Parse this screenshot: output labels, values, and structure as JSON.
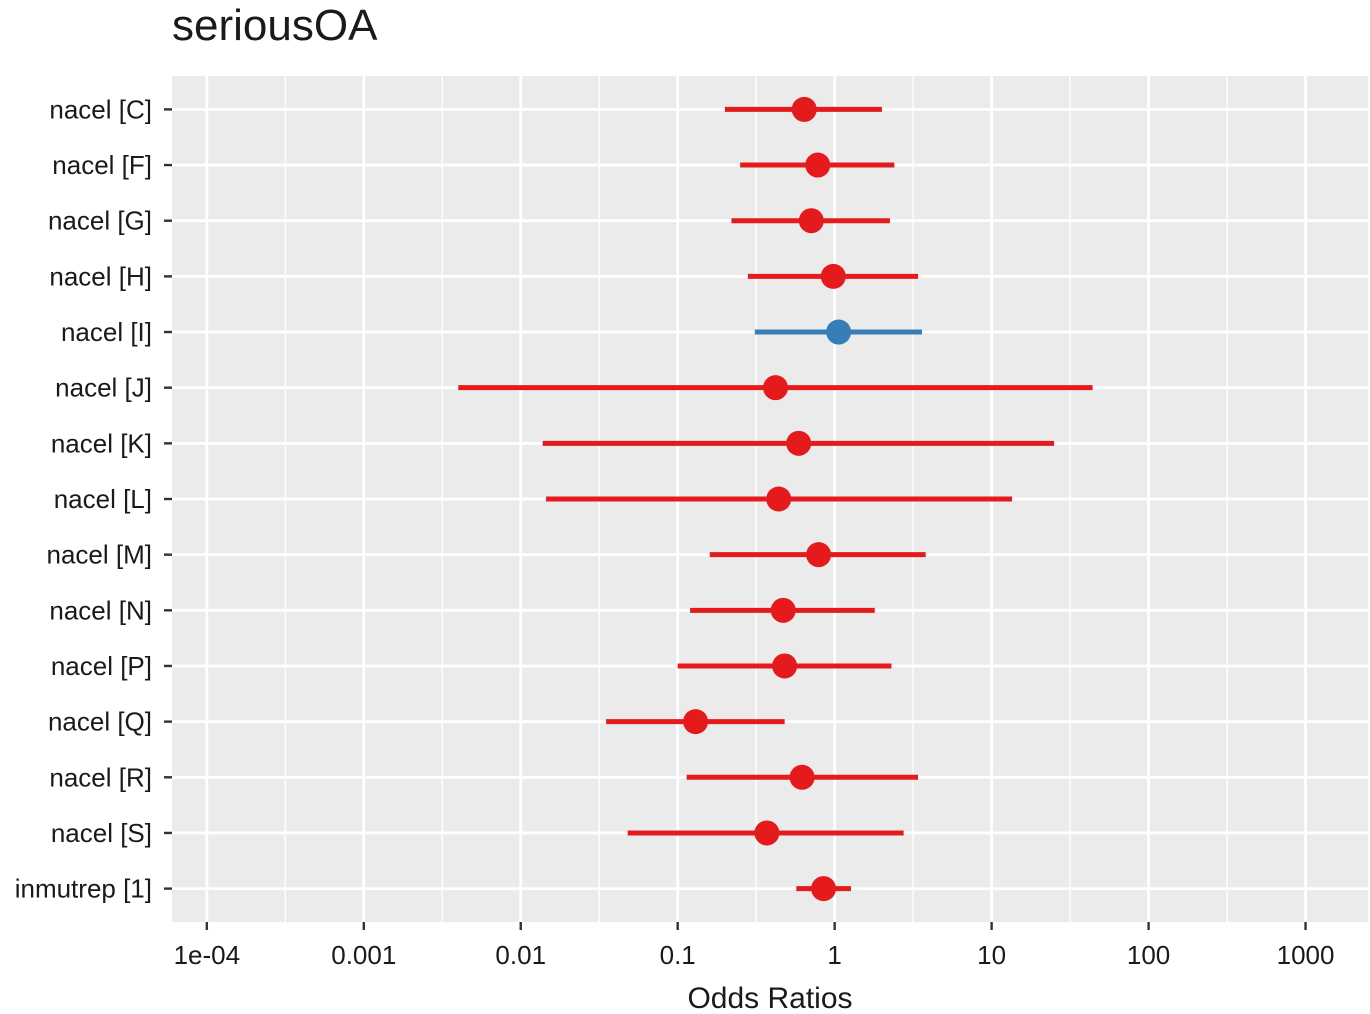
{
  "chart_data": {
    "type": "scatter",
    "subtype": "forest-plot",
    "title": "seriousOA",
    "xlabel": "Odds Ratios",
    "ylabel": "",
    "xscale": "log10",
    "xlim": [
      6e-05,
      2500
    ],
    "x_ticks": [
      0.0001,
      0.001,
      0.01,
      0.1,
      1,
      10,
      100,
      1000
    ],
    "x_tick_labels": [
      "1e-04",
      "0.001",
      "0.01",
      "0.1",
      "1",
      "10",
      "100",
      "1000"
    ],
    "grid": true,
    "legend": "none",
    "colors": {
      "negative": "#e41a1c",
      "positive": "#377eb8",
      "panel": "#ebebeb",
      "grid": "#ffffff"
    },
    "terms": [
      {
        "label": "nacel [C]",
        "estimate": 0.64,
        "ci_low": 0.2,
        "ci_high": 2.0,
        "direction": "negative"
      },
      {
        "label": "nacel [F]",
        "estimate": 0.78,
        "ci_low": 0.25,
        "ci_high": 2.4,
        "direction": "negative"
      },
      {
        "label": "nacel [G]",
        "estimate": 0.71,
        "ci_low": 0.22,
        "ci_high": 2.25,
        "direction": "negative"
      },
      {
        "label": "nacel [H]",
        "estimate": 0.98,
        "ci_low": 0.28,
        "ci_high": 3.4,
        "direction": "negative"
      },
      {
        "label": "nacel [I]",
        "estimate": 1.06,
        "ci_low": 0.31,
        "ci_high": 3.6,
        "direction": "positive"
      },
      {
        "label": "nacel [J]",
        "estimate": 0.42,
        "ci_low": 0.004,
        "ci_high": 44,
        "direction": "negative"
      },
      {
        "label": "nacel [K]",
        "estimate": 0.59,
        "ci_low": 0.0138,
        "ci_high": 25,
        "direction": "negative"
      },
      {
        "label": "nacel [L]",
        "estimate": 0.44,
        "ci_low": 0.0145,
        "ci_high": 13.5,
        "direction": "negative"
      },
      {
        "label": "nacel [M]",
        "estimate": 0.79,
        "ci_low": 0.16,
        "ci_high": 3.8,
        "direction": "negative"
      },
      {
        "label": "nacel [N]",
        "estimate": 0.47,
        "ci_low": 0.12,
        "ci_high": 1.8,
        "direction": "negative"
      },
      {
        "label": "nacel [P]",
        "estimate": 0.48,
        "ci_low": 0.1,
        "ci_high": 2.3,
        "direction": "negative"
      },
      {
        "label": "nacel [Q]",
        "estimate": 0.13,
        "ci_low": 0.035,
        "ci_high": 0.48,
        "direction": "negative"
      },
      {
        "label": "nacel [R]",
        "estimate": 0.62,
        "ci_low": 0.114,
        "ci_high": 3.4,
        "direction": "negative"
      },
      {
        "label": "nacel [S]",
        "estimate": 0.37,
        "ci_low": 0.048,
        "ci_high": 2.75,
        "direction": "negative"
      },
      {
        "label": "inmutrep [1]",
        "estimate": 0.85,
        "ci_low": 0.57,
        "ci_high": 1.27,
        "direction": "negative"
      }
    ]
  }
}
